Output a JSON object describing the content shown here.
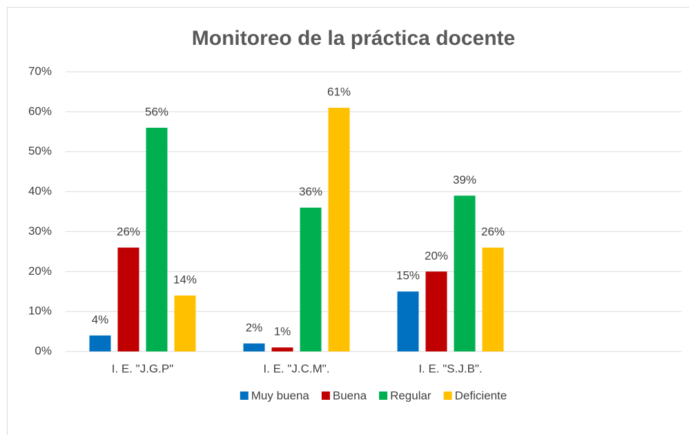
{
  "chart_data": {
    "type": "bar",
    "title": "Monitoreo de la práctica docente",
    "categories": [
      "I. E. \"J.G.P\"",
      "I. E. \"J.C.M\".",
      "I. E. \"S.J.B\".",
      null
    ],
    "series": [
      {
        "name": "Muy buena",
        "color": "#0070c0",
        "values": [
          4,
          2,
          15,
          null
        ],
        "value_labels": [
          "4%",
          "2%",
          "15%",
          null
        ]
      },
      {
        "name": "Buena",
        "color": "#c00000",
        "values": [
          26,
          1,
          20,
          null
        ],
        "value_labels": [
          "26%",
          "1%",
          "20%",
          null
        ]
      },
      {
        "name": "Regular",
        "color": "#00b050",
        "values": [
          56,
          36,
          39,
          null
        ],
        "value_labels": [
          "56%",
          "36%",
          "39%",
          null
        ]
      },
      {
        "name": "Deficiente",
        "color": "#ffc000",
        "values": [
          14,
          61,
          26,
          null
        ],
        "value_labels": [
          "14%",
          "61%",
          "26%",
          null
        ]
      }
    ],
    "ylim": [
      0,
      70
    ],
    "yticks": [
      {
        "value": 0,
        "label": "0%"
      },
      {
        "value": 10,
        "label": "10%"
      },
      {
        "value": 20,
        "label": "20%"
      },
      {
        "value": 30,
        "label": "30%"
      },
      {
        "value": 40,
        "label": "40%"
      },
      {
        "value": 50,
        "label": "50%"
      },
      {
        "value": 60,
        "label": "60%"
      },
      {
        "value": 70,
        "label": "70%"
      }
    ],
    "grid": true,
    "legend": "bottom"
  }
}
